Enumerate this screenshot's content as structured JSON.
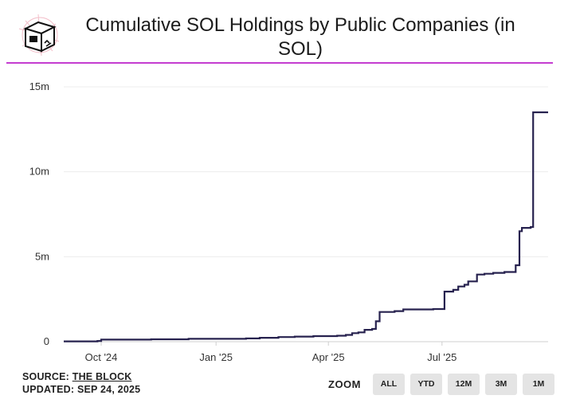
{
  "title": "Cumulative SOL Holdings by Public Companies (in SOL)",
  "footer": {
    "source_label": "SOURCE:",
    "source_name": "THE BLOCK",
    "updated_label": "UPDATED:",
    "updated_date": "SEP 24, 2025"
  },
  "zoom": {
    "label": "ZOOM",
    "buttons": [
      "ALL",
      "YTD",
      "12M",
      "3M",
      "1M"
    ]
  },
  "colors": {
    "line": "#27224f",
    "title_rule": "#c53dd0",
    "grid": "#ececec"
  },
  "chart_data": {
    "type": "line",
    "title": "Cumulative SOL Holdings by Public Companies (in SOL)",
    "xlabel": "",
    "ylabel": "",
    "grid": true,
    "legend": "none",
    "y_ticks": [
      {
        "value": 0,
        "label": "0"
      },
      {
        "value": 5000000,
        "label": "5m"
      },
      {
        "value": 10000000,
        "label": "10m"
      },
      {
        "value": 15000000,
        "label": "15m"
      }
    ],
    "x_ticks": [
      {
        "value": "2024-10-01",
        "label": "Oct '24"
      },
      {
        "value": "2025-01-01",
        "label": "Jan '25"
      },
      {
        "value": "2025-04-01",
        "label": "Apr '25"
      },
      {
        "value": "2025-07-01",
        "label": "Jul '25"
      }
    ],
    "xlim": [
      "2024-09-01",
      "2025-09-24"
    ],
    "ylim": [
      0,
      15000000
    ],
    "series": [
      {
        "step": true,
        "points": [
          [
            "2024-09-01",
            20000
          ],
          [
            "2024-09-28",
            40000
          ],
          [
            "2024-10-01",
            120000
          ],
          [
            "2024-11-10",
            140000
          ],
          [
            "2024-12-10",
            170000
          ],
          [
            "2025-01-25",
            190000
          ],
          [
            "2025-02-05",
            230000
          ],
          [
            "2025-02-20",
            270000
          ],
          [
            "2025-03-05",
            300000
          ],
          [
            "2025-03-20",
            330000
          ],
          [
            "2025-04-08",
            350000
          ],
          [
            "2025-04-15",
            400000
          ],
          [
            "2025-04-20",
            500000
          ],
          [
            "2025-04-25",
            550000
          ],
          [
            "2025-04-30",
            700000
          ],
          [
            "2025-05-06",
            750000
          ],
          [
            "2025-05-09",
            1200000
          ],
          [
            "2025-05-12",
            1750000
          ],
          [
            "2025-05-24",
            1800000
          ],
          [
            "2025-05-31",
            1900000
          ],
          [
            "2025-06-24",
            1920000
          ],
          [
            "2025-07-03",
            2950000
          ],
          [
            "2025-07-10",
            3050000
          ],
          [
            "2025-07-14",
            3250000
          ],
          [
            "2025-07-19",
            3350000
          ],
          [
            "2025-07-22",
            3550000
          ],
          [
            "2025-07-29",
            3950000
          ],
          [
            "2025-08-04",
            4000000
          ],
          [
            "2025-08-11",
            4050000
          ],
          [
            "2025-08-20",
            4100000
          ],
          [
            "2025-08-29",
            4500000
          ],
          [
            "2025-09-01",
            6500000
          ],
          [
            "2025-09-03",
            6700000
          ],
          [
            "2025-09-10",
            6750000
          ],
          [
            "2025-09-12",
            13500000
          ],
          [
            "2025-09-24",
            13500000
          ]
        ]
      }
    ]
  }
}
